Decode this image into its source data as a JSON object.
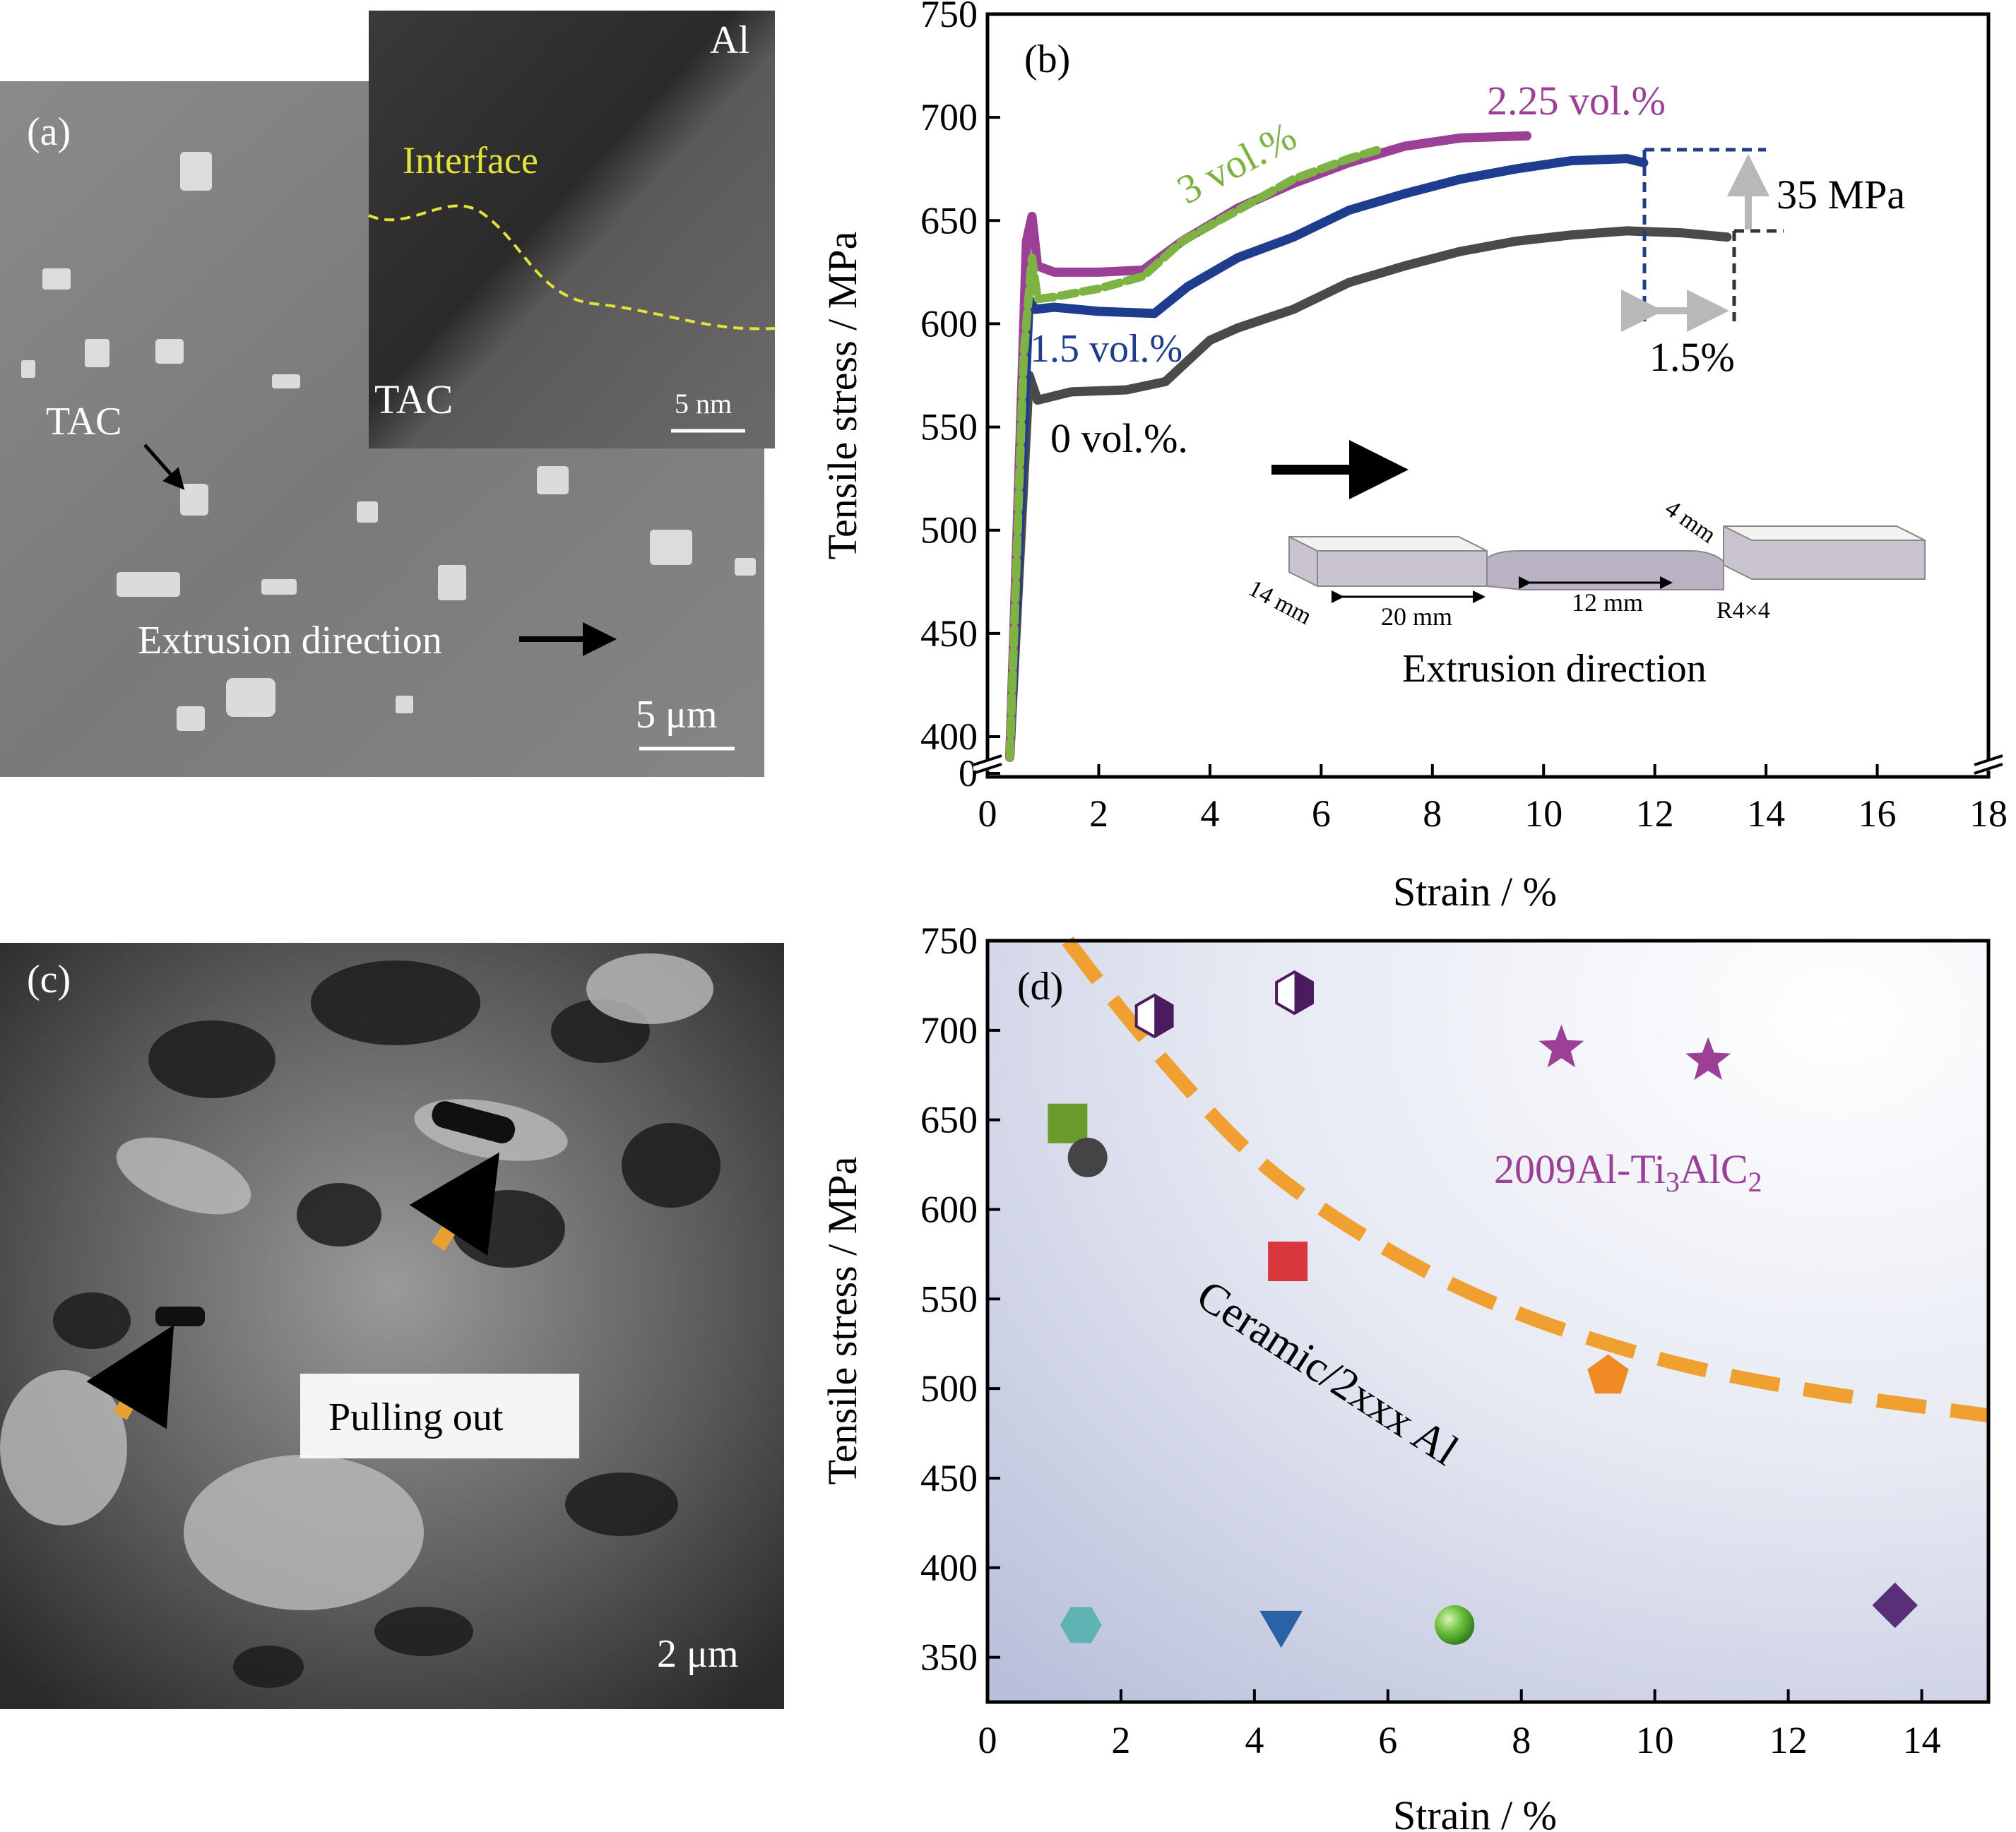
{
  "panel_a": {
    "label": "(a)",
    "inset_label_top": "Al",
    "inset_interface": "Interface",
    "inset_label_bottom": "TAC",
    "inset_scale": "5 nm",
    "tac_label": "TAC",
    "direction_label": "Extrusion direction",
    "scale_label": "5 μm"
  },
  "panel_c": {
    "label": "(c)",
    "pulling_label": "Pulling out",
    "scale_label": "2 μm"
  },
  "chart_data": [
    {
      "panel": "(b)",
      "type": "line",
      "xlabel": "Strain / %",
      "ylabel": "Tensile stress / MPa",
      "xlim": [
        0,
        18
      ],
      "ylim": [
        400,
        750
      ],
      "y_axis_break": true,
      "x_ticks": [
        "0",
        "2",
        "4",
        "6",
        "8",
        "10",
        "12",
        "14",
        "16",
        "18"
      ],
      "y_ticks": [
        "0",
        "400",
        "450",
        "500",
        "550",
        "600",
        "650",
        "700",
        "750"
      ],
      "series": [
        {
          "name": "0 vol.%.",
          "color": "#4a4a4a",
          "dashed": false,
          "x": [
            0.4,
            0.75,
            0.9,
            1.5,
            2.5,
            3.2,
            4.0,
            4.5,
            5.5,
            6.5,
            7.5,
            8.5,
            9.5,
            10.5,
            11.5,
            12.5,
            13.3
          ],
          "y": [
            390,
            575,
            563,
            567,
            568,
            572,
            592,
            598,
            607,
            620,
            628,
            635,
            640,
            643,
            645,
            644,
            642
          ]
        },
        {
          "name": "1.5 vol.%",
          "color": "#1e3d8f",
          "dashed": false,
          "x": [
            0.4,
            0.75,
            0.85,
            1.2,
            2.0,
            3.0,
            3.6,
            4.5,
            5.5,
            6.5,
            7.5,
            8.5,
            9.5,
            10.5,
            11.5,
            11.8
          ],
          "y": [
            390,
            612,
            607,
            608,
            606,
            605,
            618,
            632,
            642,
            655,
            663,
            670,
            675,
            679,
            680,
            678
          ]
        },
        {
          "name": "2.25 vol.%",
          "color": "#9b3f97",
          "dashed": false,
          "x": [
            0.4,
            0.7,
            0.8,
            0.9,
            1.2,
            2.0,
            2.8,
            3.5,
            4.5,
            5.5,
            6.5,
            7.5,
            8.5,
            9.7
          ],
          "y": [
            390,
            640,
            652,
            628,
            625,
            625,
            626,
            640,
            656,
            668,
            678,
            686,
            690,
            691
          ]
        },
        {
          "name": "3 vol.%",
          "color": "#7cb342",
          "dashed": true,
          "x": [
            0.4,
            0.65,
            0.8,
            0.9,
            1.2,
            2.0,
            2.8,
            3.5,
            4.5,
            5.5,
            6.5,
            7.0
          ],
          "y": [
            390,
            585,
            632,
            612,
            613,
            617,
            623,
            640,
            655,
            670,
            680,
            684
          ]
        }
      ],
      "annotations": {
        "panel_label": "(b)",
        "stress_gain": "35 MPa",
        "strain_gain": "1.5%",
        "direction": "Extrusion direction",
        "specimen_dims": [
          "4 mm",
          "14 mm",
          "20 mm",
          "12 mm",
          "R4×4"
        ]
      }
    },
    {
      "panel": "(d)",
      "type": "scatter",
      "xlabel": "Strain / %",
      "ylabel": "Tensile stress / MPa",
      "xlim": [
        0,
        15
      ],
      "ylim": [
        325,
        750
      ],
      "x_ticks": [
        "0",
        "2",
        "4",
        "6",
        "8",
        "10",
        "12",
        "14"
      ],
      "y_ticks": [
        "350",
        "400",
        "450",
        "500",
        "550",
        "600",
        "650",
        "700",
        "750"
      ],
      "points": [
        {
          "x": 2.5,
          "y": 708,
          "marker": "hexagon-half",
          "color": "#4b1b5e"
        },
        {
          "x": 4.6,
          "y": 721,
          "marker": "hexagon-half",
          "color": "#4b1b5e"
        },
        {
          "x": 8.6,
          "y": 690,
          "marker": "star",
          "color": "#9b3f97"
        },
        {
          "x": 10.8,
          "y": 683,
          "marker": "star",
          "color": "#9b3f97"
        },
        {
          "x": 1.2,
          "y": 648,
          "marker": "square",
          "color": "#6a9a2a"
        },
        {
          "x": 1.5,
          "y": 629,
          "marker": "circle",
          "color": "#444444"
        },
        {
          "x": 4.5,
          "y": 571,
          "marker": "square",
          "color": "#d9363e"
        },
        {
          "x": 9.3,
          "y": 507,
          "marker": "pentagon",
          "color": "#f08a24"
        },
        {
          "x": 1.4,
          "y": 368,
          "marker": "hexagon",
          "color": "#5fb3b3"
        },
        {
          "x": 4.4,
          "y": 369,
          "marker": "triangle-down",
          "color": "#2a62a6"
        },
        {
          "x": 7.0,
          "y": 368,
          "marker": "sphere",
          "color": "#6cbf3c"
        },
        {
          "x": 13.6,
          "y": 379,
          "marker": "diamond",
          "color": "#5a2f7a"
        }
      ],
      "trend_curve": {
        "label": "Ceramic/2xxx Al",
        "color": "#f0a030",
        "x": [
          1.2,
          2.0,
          3.0,
          4.0,
          5.0,
          6.0,
          7.0,
          8.0,
          9.0,
          10.0,
          11.0,
          12.0,
          13.0,
          14.0,
          15.0
        ],
        "y": [
          750,
          711,
          667,
          628,
          600,
          577,
          557,
          541,
          528,
          517,
          508,
          501,
          495,
          490,
          485
        ]
      },
      "annotations": {
        "panel_label": "(d)",
        "material_label": "2009Al-Ti3AlC2"
      }
    }
  ]
}
